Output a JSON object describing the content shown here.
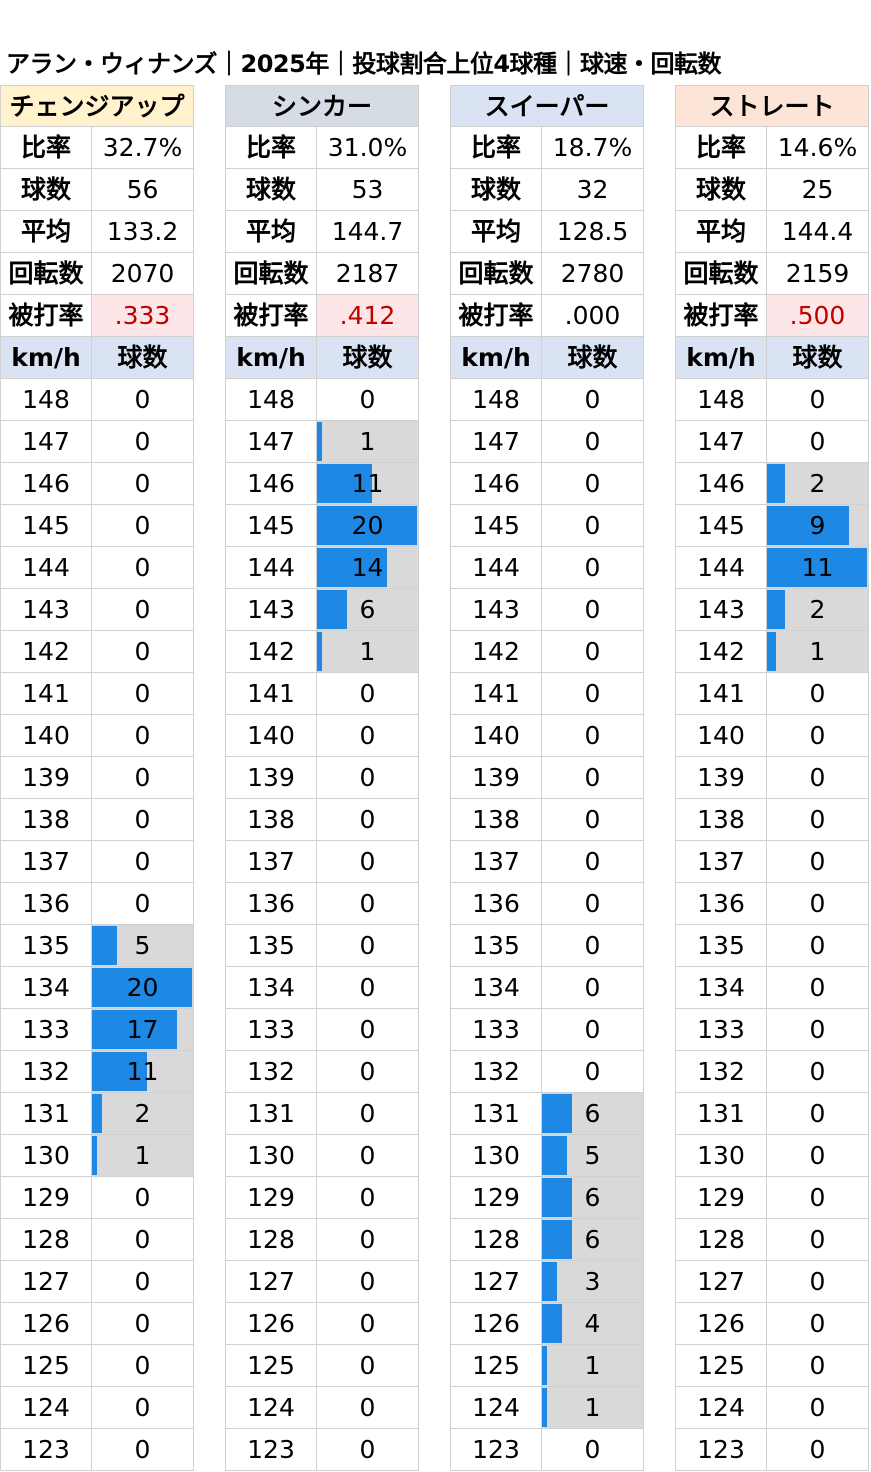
{
  "title": "アラン・ウィナンズ｜2025年｜投球割合上位4球種｜球速・回転数",
  "labels": {
    "ratio": "比率",
    "count": "球数",
    "avg": "平均",
    "spin": "回転数",
    "hit_rate": "被打率",
    "kmh": "km/h",
    "pitches": "球数"
  },
  "colors": {
    "bar": "#1e88e5",
    "bar_track": "#d9d9d9",
    "subheader_bg": "#dae3f3",
    "hit_rate_high_bg": "#fde5e8",
    "hit_rate_high_text": "#c00000"
  },
  "chart_data": [
    {
      "type": "bar",
      "name": "チェンジアップ",
      "header_color": "#fff2cc",
      "stats": {
        "ratio": "32.7%",
        "count": "56",
        "avg": "133.2",
        "spin": "2070",
        "hit_rate": ".333",
        "hit_rate_highlight": true
      },
      "max": 20,
      "categories": [
        "148",
        "147",
        "146",
        "145",
        "144",
        "143",
        "142",
        "141",
        "140",
        "139",
        "138",
        "137",
        "136",
        "135",
        "134",
        "133",
        "132",
        "131",
        "130",
        "129",
        "128",
        "127",
        "126",
        "125",
        "124",
        "123"
      ],
      "values": [
        0,
        0,
        0,
        0,
        0,
        0,
        0,
        0,
        0,
        0,
        0,
        0,
        0,
        5,
        20,
        17,
        11,
        2,
        1,
        0,
        0,
        0,
        0,
        0,
        0,
        0
      ]
    },
    {
      "type": "bar",
      "name": "シンカー",
      "header_color": "#d6dce4",
      "stats": {
        "ratio": "31.0%",
        "count": "53",
        "avg": "144.7",
        "spin": "2187",
        "hit_rate": ".412",
        "hit_rate_highlight": true
      },
      "max": 20,
      "categories": [
        "148",
        "147",
        "146",
        "145",
        "144",
        "143",
        "142",
        "141",
        "140",
        "139",
        "138",
        "137",
        "136",
        "135",
        "134",
        "133",
        "132",
        "131",
        "130",
        "129",
        "128",
        "127",
        "126",
        "125",
        "124",
        "123"
      ],
      "values": [
        0,
        1,
        11,
        20,
        14,
        6,
        1,
        0,
        0,
        0,
        0,
        0,
        0,
        0,
        0,
        0,
        0,
        0,
        0,
        0,
        0,
        0,
        0,
        0,
        0,
        0
      ]
    },
    {
      "type": "bar",
      "name": "スイーパー",
      "header_color": "#dae3f3",
      "stats": {
        "ratio": "18.7%",
        "count": "32",
        "avg": "128.5",
        "spin": "2780",
        "hit_rate": ".000",
        "hit_rate_highlight": false
      },
      "max": 20,
      "categories": [
        "148",
        "147",
        "146",
        "145",
        "144",
        "143",
        "142",
        "141",
        "140",
        "139",
        "138",
        "137",
        "136",
        "135",
        "134",
        "133",
        "132",
        "131",
        "130",
        "129",
        "128",
        "127",
        "126",
        "125",
        "124",
        "123"
      ],
      "values": [
        0,
        0,
        0,
        0,
        0,
        0,
        0,
        0,
        0,
        0,
        0,
        0,
        0,
        0,
        0,
        0,
        0,
        6,
        5,
        6,
        6,
        3,
        4,
        1,
        1,
        0
      ]
    },
    {
      "type": "bar",
      "name": "ストレート",
      "header_color": "#fce4d6",
      "stats": {
        "ratio": "14.6%",
        "count": "25",
        "avg": "144.4",
        "spin": "2159",
        "hit_rate": ".500",
        "hit_rate_highlight": true
      },
      "max": 11,
      "categories": [
        "148",
        "147",
        "146",
        "145",
        "144",
        "143",
        "142",
        "141",
        "140",
        "139",
        "138",
        "137",
        "136",
        "135",
        "134",
        "133",
        "132",
        "131",
        "130",
        "129",
        "128",
        "127",
        "126",
        "125",
        "124",
        "123"
      ],
      "values": [
        0,
        0,
        2,
        9,
        11,
        2,
        1,
        0,
        0,
        0,
        0,
        0,
        0,
        0,
        0,
        0,
        0,
        0,
        0,
        0,
        0,
        0,
        0,
        0,
        0,
        0
      ]
    }
  ]
}
